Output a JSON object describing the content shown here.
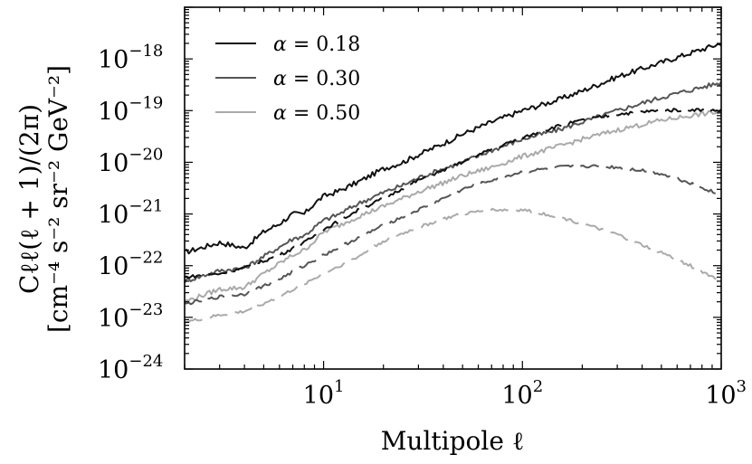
{
  "chart_data": {
    "type": "line",
    "title": "",
    "xlabel": "Multipole ℓ",
    "ylabel_line1": "Cℓℓ(ℓ + 1)/(2π)",
    "ylabel_line2": "[cm⁻⁴ s⁻² sr⁻² GeV⁻²]",
    "xscale": "log",
    "yscale": "log",
    "xlim": [
      2,
      1000
    ],
    "ylim": [
      1e-24,
      1e-17
    ],
    "x_ticks": [
      {
        "value": 10,
        "mantissa": "10",
        "exp": "1"
      },
      {
        "value": 100,
        "mantissa": "10",
        "exp": "2"
      },
      {
        "value": 1000,
        "mantissa": "10",
        "exp": "3"
      }
    ],
    "y_ticks": [
      {
        "value": 1e-24,
        "mantissa": "10",
        "exp": "−24"
      },
      {
        "value": 1e-23,
        "mantissa": "10",
        "exp": "−23"
      },
      {
        "value": 1e-22,
        "mantissa": "10",
        "exp": "−22"
      },
      {
        "value": 1e-21,
        "mantissa": "10",
        "exp": "−21"
      },
      {
        "value": 1e-20,
        "mantissa": "10",
        "exp": "−20"
      },
      {
        "value": 1e-19,
        "mantissa": "10",
        "exp": "−19"
      },
      {
        "value": 1e-18,
        "mantissa": "10",
        "exp": "−18"
      }
    ],
    "legend_position": "top-left",
    "legend": [
      {
        "symbol": "α",
        "text": " = 0.18",
        "color": "#111111"
      },
      {
        "symbol": "α",
        "text": " = 0.30",
        "color": "#555555"
      },
      {
        "symbol": "α",
        "text": " = 0.50",
        "color": "#aaaaaa"
      }
    ],
    "series": [
      {
        "name": "α = 0.18 (total, solid)",
        "color": "#111111",
        "style": "solid",
        "x": [
          2,
          3,
          4,
          5,
          6,
          7,
          8,
          9,
          10,
          12,
          15,
          20,
          25,
          30,
          40,
          50,
          70,
          100,
          150,
          200,
          300,
          500,
          700,
          1000
        ],
        "y": [
          1.8e-22,
          2.8e-22,
          2.2e-22,
          4.5e-22,
          6.5e-22,
          1e-21,
          1e-21,
          1.6e-21,
          2.2e-21,
          2.8e-21,
          4.2e-21,
          7.5e-21,
          1e-20,
          1.4e-20,
          2.3e-20,
          3.5e-20,
          6e-20,
          1e-19,
          1.6e-19,
          2.4e-19,
          4.5e-19,
          8.5e-19,
          1.3e-18,
          2e-18
        ],
        "jitter": 0.05
      },
      {
        "name": "α = 0.30 (total, solid)",
        "color": "#555555",
        "style": "solid",
        "x": [
          2,
          3,
          4,
          5,
          6,
          7,
          8,
          9,
          10,
          12,
          15,
          20,
          25,
          30,
          40,
          50,
          70,
          100,
          150,
          200,
          300,
          500,
          700,
          1000
        ],
        "y": [
          5e-23,
          8e-23,
          9e-23,
          1.5e-22,
          2.3e-22,
          3.3e-22,
          3.8e-22,
          5.5e-22,
          7.5e-22,
          1e-21,
          1.6e-21,
          2.6e-21,
          3.6e-21,
          5e-21,
          7.5e-21,
          1e-20,
          1.7e-20,
          2.8e-20,
          4.2e-20,
          6e-20,
          1e-19,
          1.8e-19,
          2.5e-19,
          3.5e-19
        ],
        "jitter": 0.045
      },
      {
        "name": "α = 0.50 (total, solid)",
        "color": "#aaaaaa",
        "style": "solid",
        "x": [
          2,
          3,
          4,
          5,
          6,
          7,
          8,
          9,
          10,
          12,
          15,
          20,
          25,
          30,
          40,
          50,
          70,
          100,
          150,
          200,
          300,
          500,
          700,
          1000
        ],
        "y": [
          2e-23,
          3.5e-23,
          3.8e-23,
          7e-23,
          1.1e-22,
          1.6e-22,
          2e-22,
          3e-22,
          4.5e-22,
          6e-22,
          9e-22,
          1.4e-21,
          2e-21,
          2.7e-21,
          4e-21,
          5.5e-21,
          8e-21,
          1.3e-20,
          2e-20,
          2.8e-20,
          4.2e-20,
          6.5e-20,
          8e-20,
          9.5e-20
        ],
        "jitter": 0.045
      },
      {
        "name": "α = 0.18 (component, dashed)",
        "color": "#111111",
        "style": "dashed",
        "x": [
          2,
          3,
          4,
          6,
          8,
          10,
          15,
          20,
          30,
          40,
          50,
          70,
          100,
          150,
          200,
          300,
          400,
          500,
          700,
          1000
        ],
        "y": [
          6e-23,
          7e-23,
          9e-23,
          1.6e-22,
          2.8e-22,
          5e-22,
          1.2e-21,
          2e-21,
          4.5e-21,
          7e-21,
          1e-20,
          1.8e-20,
          3e-20,
          5e-20,
          6.5e-20,
          8.5e-20,
          9.5e-20,
          1e-19,
          1.05e-19,
          1e-19
        ],
        "jitter": 0.03
      },
      {
        "name": "α = 0.30 (component, dashed)",
        "color": "#555555",
        "style": "dashed",
        "x": [
          2,
          3,
          4,
          6,
          8,
          10,
          15,
          20,
          30,
          40,
          50,
          70,
          100,
          150,
          200,
          300,
          400,
          500,
          700,
          1000
        ],
        "y": [
          1.8e-23,
          2.5e-23,
          2.8e-23,
          5.5e-23,
          1e-22,
          1.6e-22,
          3.5e-22,
          6e-22,
          1.2e-21,
          2e-21,
          3e-21,
          4.5e-21,
          6.5e-21,
          8e-21,
          8.5e-21,
          8e-21,
          7e-21,
          6e-21,
          4e-21,
          2.3e-21
        ],
        "jitter": 0.03
      },
      {
        "name": "α = 0.50 (component, dashed)",
        "color": "#aaaaaa",
        "style": "dashed",
        "x": [
          2,
          3,
          4,
          6,
          8,
          10,
          15,
          20,
          30,
          40,
          50,
          70,
          100,
          150,
          200,
          300,
          400,
          500,
          700,
          1000
        ],
        "y": [
          8e-24,
          1.1e-23,
          1.3e-23,
          2.5e-23,
          4.5e-23,
          7e-23,
          1.5e-22,
          3e-22,
          5.5e-22,
          8e-22,
          1e-21,
          1.2e-21,
          1.2e-21,
          9e-22,
          6.5e-22,
          4e-22,
          2.5e-22,
          1.8e-22,
          1e-22,
          5e-23
        ],
        "jitter": 0.03
      }
    ]
  }
}
